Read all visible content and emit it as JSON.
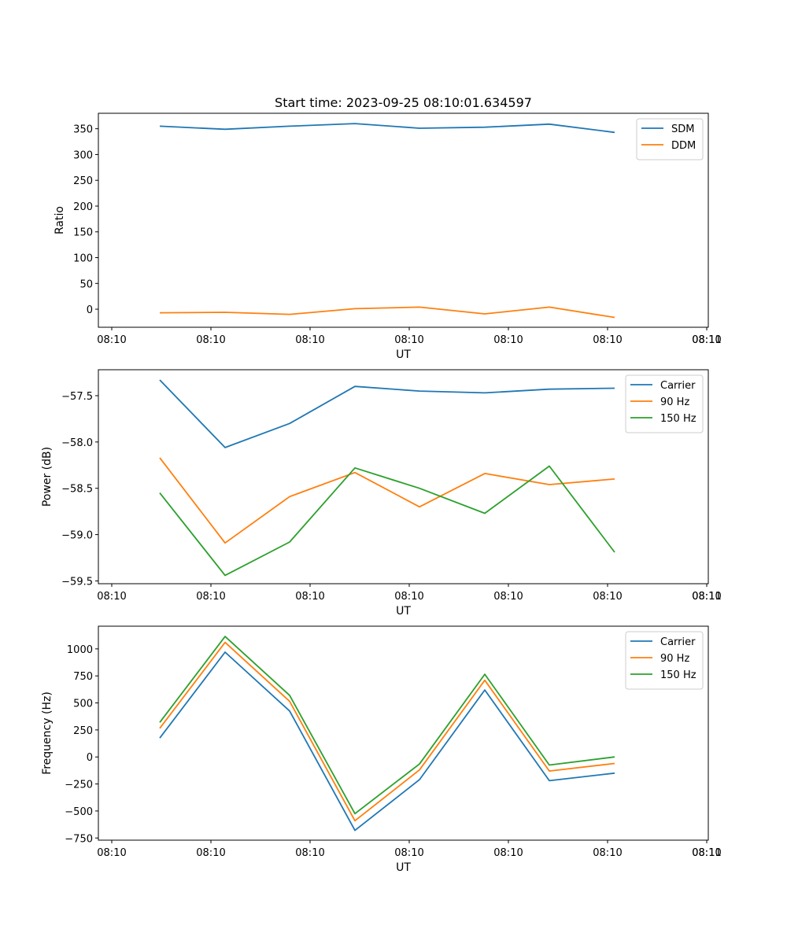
{
  "chart_data": [
    {
      "type": "line",
      "title": "Start time: 2023-09-25 08:10:01.634597",
      "xlabel": "UT",
      "ylabel": "Ratio",
      "x_tick_labels": [
        "08:10",
        "08:10",
        "08:10",
        "08:10",
        "08:10",
        "08:10",
        "08:10",
        "08:11"
      ],
      "y_ticks": [
        0,
        50,
        100,
        150,
        200,
        250,
        300,
        350
      ],
      "ylim": [
        -35,
        380
      ],
      "grid": false,
      "legend_position": "top-right",
      "series": [
        {
          "name": "SDM",
          "color": "#1f77b4",
          "values": [
            355,
            349,
            355,
            360,
            351,
            353,
            359,
            343
          ]
        },
        {
          "name": "DDM",
          "color": "#ff7f0e",
          "values": [
            -7,
            -6,
            -10,
            1,
            4,
            -9,
            4,
            -16
          ]
        }
      ]
    },
    {
      "type": "line",
      "title": "",
      "xlabel": "UT",
      "ylabel": "Power (dB)",
      "x_tick_labels": [
        "08:10",
        "08:10",
        "08:10",
        "08:10",
        "08:10",
        "08:10",
        "08:10",
        "08:11"
      ],
      "y_ticks": [
        -57.5,
        -58.0,
        -58.5,
        -59.0,
        -59.5
      ],
      "y_tick_labels": [
        "−57.5",
        "−58.0",
        "−58.5",
        "−59.0",
        "−59.5"
      ],
      "ylim": [
        -59.53,
        -57.22
      ],
      "grid": false,
      "legend_position": "top-right",
      "series": [
        {
          "name": "Carrier",
          "color": "#1f77b4",
          "values": [
            -57.33,
            -58.06,
            -57.8,
            -57.4,
            -57.45,
            -57.47,
            -57.43,
            -57.42
          ]
        },
        {
          "name": "90 Hz",
          "color": "#ff7f0e",
          "values": [
            -58.17,
            -59.09,
            -58.59,
            -58.33,
            -58.7,
            -58.34,
            -58.46,
            -58.4
          ]
        },
        {
          "name": "150 Hz",
          "color": "#2ca02c",
          "values": [
            -58.55,
            -59.44,
            -59.08,
            -58.28,
            -58.5,
            -58.77,
            -58.26,
            -59.19
          ]
        }
      ]
    },
    {
      "type": "line",
      "title": "",
      "xlabel": "UT",
      "ylabel": "Frequency (Hz)",
      "x_tick_labels": [
        "08:10",
        "08:10",
        "08:10",
        "08:10",
        "08:10",
        "08:10",
        "08:10",
        "08:11"
      ],
      "y_ticks": [
        1000,
        750,
        500,
        250,
        0,
        -250,
        -500,
        -750
      ],
      "y_tick_labels": [
        "1000",
        "750",
        "500",
        "250",
        "0",
        "−250",
        "−500",
        "−750"
      ],
      "ylim": [
        -770,
        1210
      ],
      "grid": false,
      "legend_position": "top-right",
      "series": [
        {
          "name": "Carrier",
          "color": "#1f77b4",
          "values": [
            175,
            970,
            425,
            -680,
            -210,
            620,
            -220,
            -150
          ]
        },
        {
          "name": "90 Hz",
          "color": "#ff7f0e",
          "values": [
            265,
            1060,
            515,
            -590,
            -120,
            710,
            -130,
            -60
          ]
        },
        {
          "name": "150 Hz",
          "color": "#2ca02c",
          "values": [
            320,
            1115,
            570,
            -525,
            -65,
            765,
            -75,
            0
          ]
        }
      ]
    }
  ]
}
